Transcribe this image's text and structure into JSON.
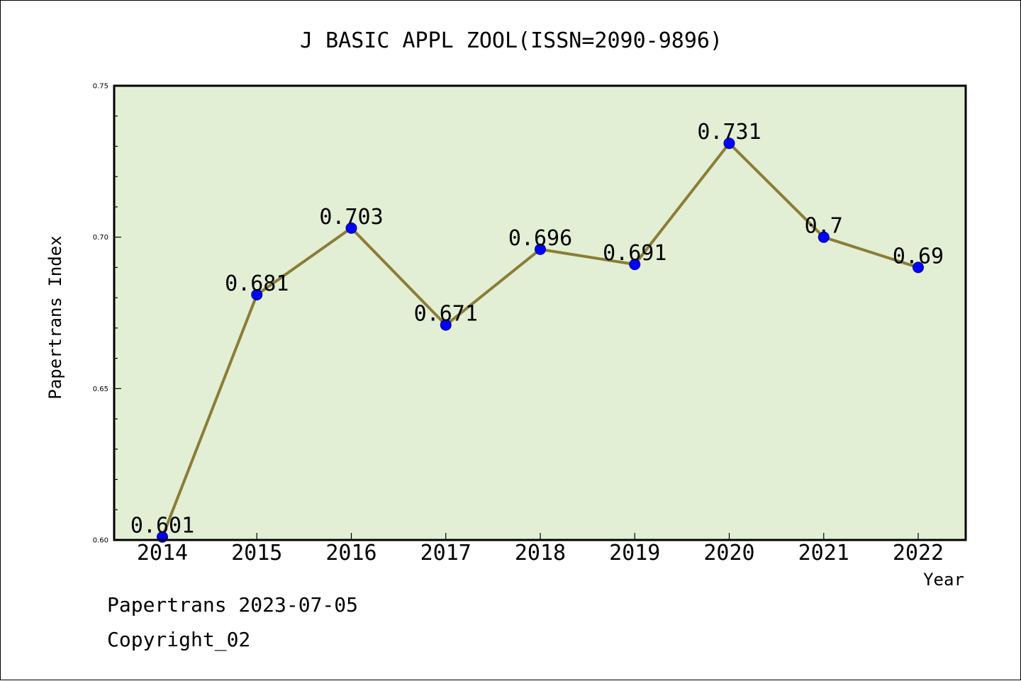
{
  "footer": {
    "line1": "Papertrans 2023-07-05",
    "line2": "Copyright_02"
  },
  "colors": {
    "plot_background": "#e2efd5",
    "line": "#8b7d37",
    "marker": "#0000ff"
  },
  "chart_data": {
    "type": "line",
    "title": "J BASIC APPL ZOOL(ISSN=2090-9896)",
    "xlabel": "Year",
    "ylabel": "Papertrans Index",
    "ylim": [
      0.6,
      0.75
    ],
    "yticks": [
      "0.60",
      "0.65",
      "0.70",
      "0.75"
    ],
    "grid": false,
    "categories": [
      "2014",
      "2015",
      "2016",
      "2017",
      "2018",
      "2019",
      "2020",
      "2021",
      "2022"
    ],
    "values": [
      0.601,
      0.681,
      0.703,
      0.671,
      0.696,
      0.691,
      0.731,
      0.7,
      0.69
    ],
    "data_labels": [
      "0.601",
      "0.681",
      "0.703",
      "0.671",
      "0.696",
      "0.691",
      "0.731",
      "0.7",
      "0.69"
    ]
  }
}
